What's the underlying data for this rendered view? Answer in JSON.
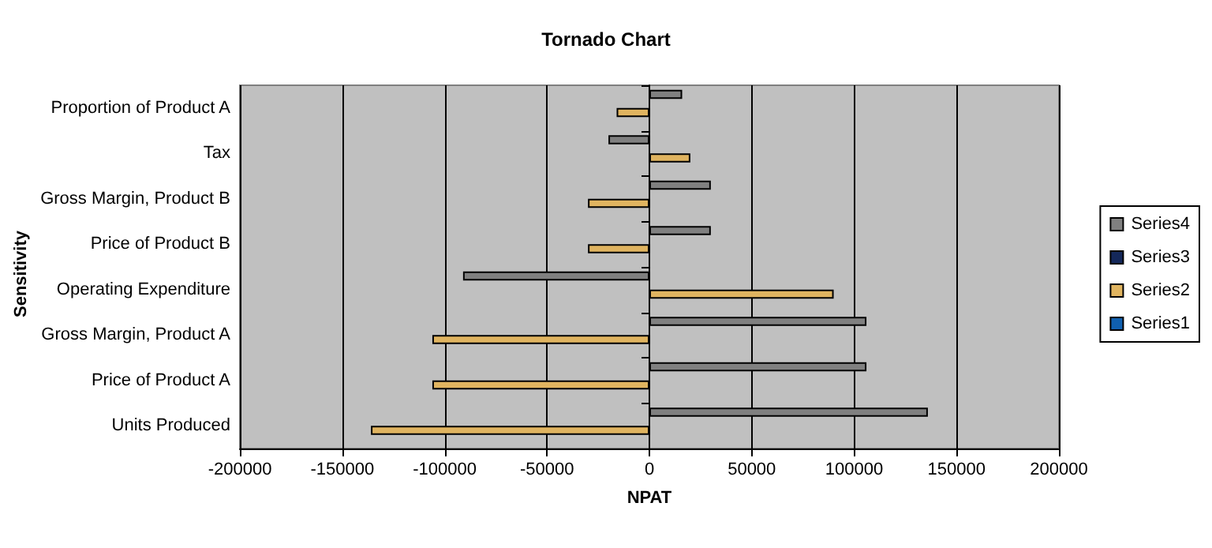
{
  "chart_data": {
    "type": "bar",
    "orientation": "horizontal",
    "title": "Tornado Chart",
    "xlabel": "NPAT",
    "ylabel": "Sensitivity",
    "categories": [
      "Proportion of Product A",
      "Tax",
      "Gross Margin, Product B",
      "Price of Product B",
      "Operating Expenditure",
      "Gross Margin, Product A",
      "Price of Product A",
      "Units Produced"
    ],
    "series": [
      {
        "name": "Series4",
        "color": "#808080",
        "values": [
          16000,
          -20000,
          30000,
          30000,
          -91000,
          106000,
          106000,
          136000
        ]
      },
      {
        "name": "Series3",
        "color": "#14285a",
        "values": [
          null,
          null,
          null,
          null,
          null,
          null,
          null,
          null
        ]
      },
      {
        "name": "Series2",
        "color": "#e0b460",
        "values": [
          -16000,
          20000,
          -30000,
          -30000,
          90000,
          -106000,
          -106000,
          -136000
        ]
      },
      {
        "name": "Series1",
        "color": "#1060b0",
        "values": [
          null,
          null,
          null,
          null,
          null,
          null,
          null,
          null
        ]
      }
    ],
    "xlim": [
      -200000,
      200000
    ],
    "xticks": [
      -200000,
      -150000,
      -100000,
      -50000,
      0,
      50000,
      100000,
      150000,
      200000
    ],
    "grid": "x",
    "legend": "right"
  }
}
